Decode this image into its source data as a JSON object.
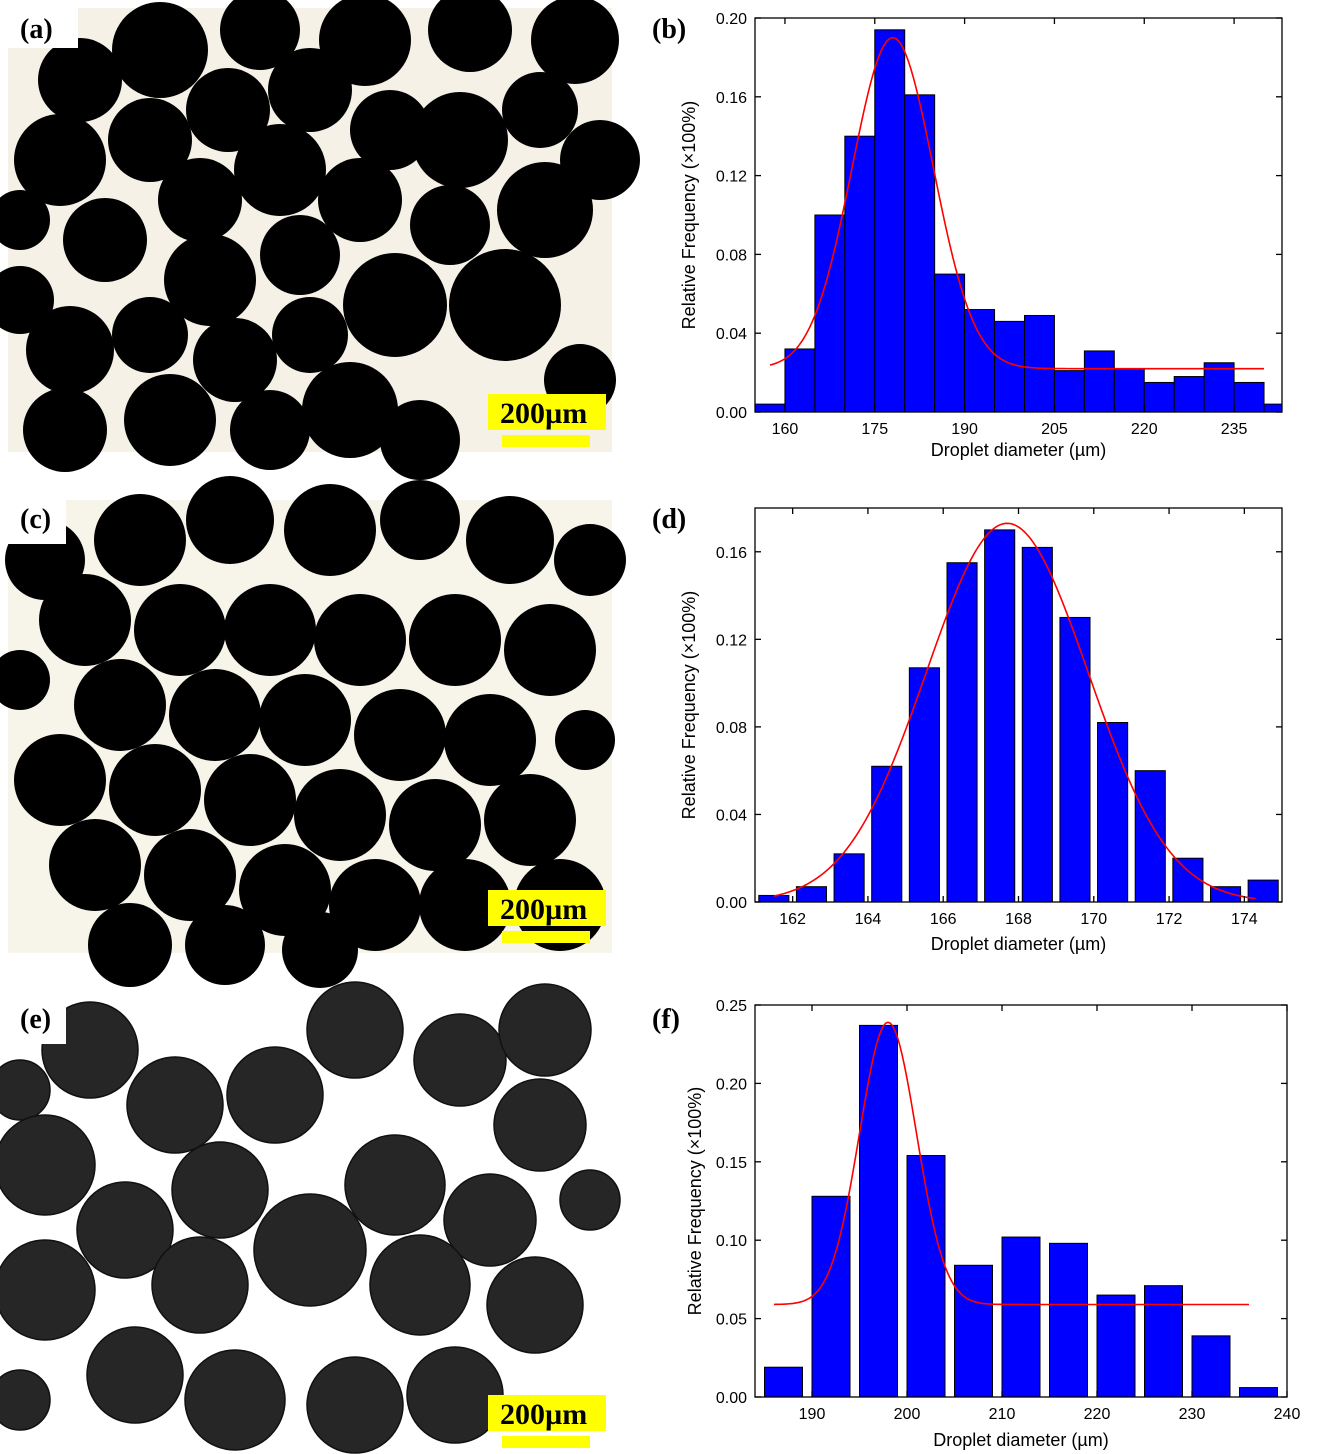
{
  "panels": [
    {
      "id": "a",
      "label": "(a)",
      "kind": "micrograph",
      "scale_bar": "200µm",
      "background": "#f6f1e6",
      "droplet_color": "#000000"
    },
    {
      "id": "c",
      "label": "(c)",
      "kind": "micrograph",
      "scale_bar": "200µm",
      "background": "#f7f4ea",
      "droplet_color": "#000000"
    },
    {
      "id": "e",
      "label": "(e)",
      "kind": "micrograph",
      "scale_bar": "200µm",
      "background": "#ffffff",
      "droplet_color": "#262626"
    }
  ],
  "chart_data": [
    {
      "id": "b",
      "panel_label": "(b)",
      "type": "bar",
      "xlabel": "Droplet diameter (µm)",
      "ylabel": "Relative Frequency (×100%)",
      "xlim": [
        155,
        243
      ],
      "ylim": [
        0,
        0.2
      ],
      "xticks": [
        160,
        175,
        190,
        205,
        220,
        235
      ],
      "yticks": [
        0.0,
        0.04,
        0.08,
        0.12,
        0.16,
        0.2
      ],
      "bar_width": 5,
      "x": [
        157.5,
        162.5,
        167.5,
        172.5,
        177.5,
        182.5,
        187.5,
        192.5,
        197.5,
        202.5,
        207.5,
        212.5,
        217.5,
        222.5,
        227.5,
        232.5,
        237.5,
        242.5
      ],
      "values": [
        0.004,
        0.032,
        0.1,
        0.14,
        0.194,
        0.161,
        0.07,
        0.052,
        0.046,
        0.049,
        0.021,
        0.031,
        0.022,
        0.015,
        0.018,
        0.025,
        0.015,
        0.004
      ],
      "fit": {
        "type": "gauss",
        "y0": 0.022,
        "amplitude": 0.168,
        "center": 178,
        "sigma": 6.8,
        "x_range": [
          157.5,
          240
        ]
      },
      "colors": {
        "bar": "#0000ff",
        "fit": "#ff0000"
      }
    },
    {
      "id": "d",
      "panel_label": "(d)",
      "type": "bar",
      "xlabel": "Droplet diameter (µm)",
      "ylabel": "Relative Frequency (×100%)",
      "xlim": [
        161,
        175
      ],
      "ylim": [
        0,
        0.18
      ],
      "xticks": [
        162,
        164,
        166,
        168,
        170,
        172,
        174
      ],
      "yticks": [
        0.0,
        0.04,
        0.08,
        0.12,
        0.16
      ],
      "bar_width": 0.8,
      "x": [
        161.5,
        162.5,
        163.5,
        164.5,
        165.5,
        166.5,
        167.5,
        168.5,
        169.5,
        170.5,
        171.5,
        172.5,
        173.5,
        174.5
      ],
      "values": [
        0.003,
        0.007,
        0.022,
        0.062,
        0.107,
        0.155,
        0.17,
        0.162,
        0.13,
        0.082,
        0.06,
        0.02,
        0.007,
        0.01
      ],
      "fit": {
        "type": "gauss",
        "y0": 0.0,
        "amplitude": 0.173,
        "center": 167.7,
        "sigma": 2.15,
        "x_range": [
          161.5,
          174.3
        ]
      },
      "colors": {
        "bar": "#0000ff",
        "fit": "#ff0000"
      }
    },
    {
      "id": "f",
      "panel_label": "(f)",
      "type": "bar",
      "xlabel": "Droplet diameter (µm)",
      "ylabel": "Relative Frequency (×100%)",
      "xlim": [
        184,
        240
      ],
      "ylim": [
        0,
        0.25
      ],
      "xticks": [
        190,
        200,
        210,
        220,
        230,
        240
      ],
      "yticks": [
        0.0,
        0.05,
        0.1,
        0.15,
        0.2,
        0.25
      ],
      "bar_width": 4,
      "x": [
        187,
        192,
        197,
        202,
        207,
        212,
        217,
        222,
        227,
        232,
        237
      ],
      "values": [
        0.019,
        0.128,
        0.237,
        0.154,
        0.084,
        0.102,
        0.098,
        0.065,
        0.071,
        0.039,
        0.006
      ],
      "fit": {
        "type": "gauss",
        "y0": 0.059,
        "amplitude": 0.18,
        "center": 198,
        "sigma": 3.0,
        "x_range": [
          186,
          236
        ]
      },
      "colors": {
        "bar": "#0000ff",
        "fit": "#ff0000"
      }
    }
  ]
}
